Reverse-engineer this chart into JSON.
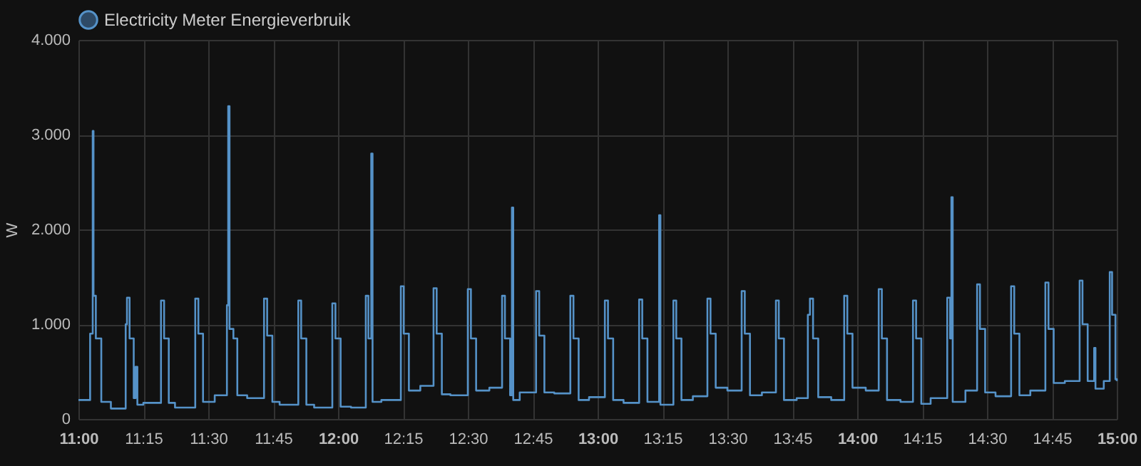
{
  "chart_data": {
    "type": "step",
    "ylabel": "W",
    "legend": "top",
    "grid": true,
    "marker": "none",
    "xlim": [
      11,
      15
    ],
    "ylim": [
      0,
      4000
    ],
    "xticks": [
      {
        "value": 11,
        "label": "11:00"
      },
      {
        "value": 11.25,
        "label": "11:15"
      },
      {
        "value": 11.5,
        "label": "11:30"
      },
      {
        "value": 11.75,
        "label": "11:45"
      },
      {
        "value": 12,
        "label": "12:00"
      },
      {
        "value": 12.25,
        "label": "12:15"
      },
      {
        "value": 12.5,
        "label": "12:30"
      },
      {
        "value": 12.75,
        "label": "12:45"
      },
      {
        "value": 13,
        "label": "13:00"
      },
      {
        "value": 13.25,
        "label": "13:15"
      },
      {
        "value": 13.5,
        "label": "13:30"
      },
      {
        "value": 13.75,
        "label": "13:45"
      },
      {
        "value": 14,
        "label": "14:00"
      },
      {
        "value": 14.25,
        "label": "14:15"
      },
      {
        "value": 14.5,
        "label": "14:30"
      },
      {
        "value": 14.75,
        "label": "14:45"
      },
      {
        "value": 15,
        "label": "15:00"
      }
    ],
    "yticks": [
      0,
      {
        "value": 1000,
        "label": "1.000"
      },
      {
        "value": 2000,
        "label": "2.000"
      },
      {
        "value": 3000,
        "label": "3.000"
      },
      {
        "value": 4000,
        "label": "4.000"
      }
    ],
    "x": [
      11,
      11.045,
      11.055,
      11.058,
      11.067,
      11.088,
      11.125,
      11.182,
      11.187,
      11.197,
      11.213,
      11.22,
      11.227,
      11.25,
      11.318,
      11.33,
      11.348,
      11.372,
      11.45,
      11.462,
      11.48,
      11.525,
      11.572,
      11.577,
      11.582,
      11.597,
      11.612,
      11.65,
      11.715,
      11.727,
      11.747,
      11.775,
      11.847,
      11.858,
      11.878,
      11.908,
      11.978,
      11.99,
      12.01,
      12.05,
      12.107,
      12.117,
      12.128,
      12.133,
      12.167,
      12.242,
      12.253,
      12.273,
      12.317,
      12.368,
      12.38,
      12.4,
      12.433,
      12.5,
      12.512,
      12.532,
      12.583,
      12.632,
      12.643,
      12.663,
      12.67,
      12.675,
      12.7,
      12.763,
      12.775,
      12.795,
      12.833,
      12.895,
      12.907,
      12.927,
      12.967,
      13.028,
      13.04,
      13.06,
      13.1,
      13.16,
      13.172,
      13.192,
      13.237,
      13.242,
      13.292,
      13.303,
      13.323,
      13.367,
      13.423,
      13.435,
      13.455,
      13.5,
      13.555,
      13.567,
      13.587,
      13.633,
      13.687,
      13.698,
      13.718,
      13.767,
      13.81,
      13.818,
      13.83,
      13.85,
      13.9,
      13.95,
      13.962,
      13.982,
      14.033,
      14.083,
      14.095,
      14.115,
      14.167,
      14.215,
      14.227,
      14.247,
      14.283,
      14.347,
      14.358,
      14.363,
      14.368,
      14.417,
      14.462,
      14.473,
      14.493,
      14.533,
      14.593,
      14.605,
      14.625,
      14.667,
      14.725,
      14.737,
      14.757,
      14.8,
      14.857,
      14.868,
      14.888,
      14.913,
      14.918,
      14.95,
      14.973,
      14.982,
      14.995,
      15
    ],
    "series": [
      {
        "name": "Electricity Meter Energieverbruik",
        "color": "#5592c8",
        "values": [
          200,
          900,
          3040,
          1300,
          850,
          180,
          110,
          1000,
          1280,
          850,
          220,
          550,
          150,
          170,
          1250,
          850,
          170,
          120,
          1270,
          900,
          180,
          250,
          1200,
          3300,
          950,
          850,
          250,
          220,
          1270,
          880,
          180,
          150,
          1250,
          850,
          150,
          120,
          1220,
          850,
          130,
          120,
          1300,
          850,
          2800,
          180,
          200,
          1400,
          900,
          300,
          350,
          1380,
          900,
          260,
          250,
          1370,
          850,
          300,
          330,
          1300,
          850,
          250,
          2230,
          200,
          280,
          1350,
          880,
          280,
          270,
          1300,
          850,
          200,
          230,
          1250,
          850,
          200,
          170,
          1260,
          850,
          180,
          2150,
          150,
          1250,
          850,
          200,
          240,
          1270,
          900,
          330,
          300,
          1350,
          900,
          250,
          280,
          1250,
          850,
          200,
          220,
          1100,
          1270,
          850,
          230,
          200,
          1300,
          900,
          330,
          300,
          1370,
          850,
          200,
          180,
          1250,
          850,
          160,
          220,
          1280,
          850,
          2340,
          180,
          300,
          1420,
          950,
          280,
          240,
          1400,
          900,
          250,
          300,
          1440,
          950,
          380,
          400,
          1460,
          1000,
          400,
          750,
          320,
          400,
          1550,
          1100,
          420,
          400
        ]
      }
    ]
  }
}
